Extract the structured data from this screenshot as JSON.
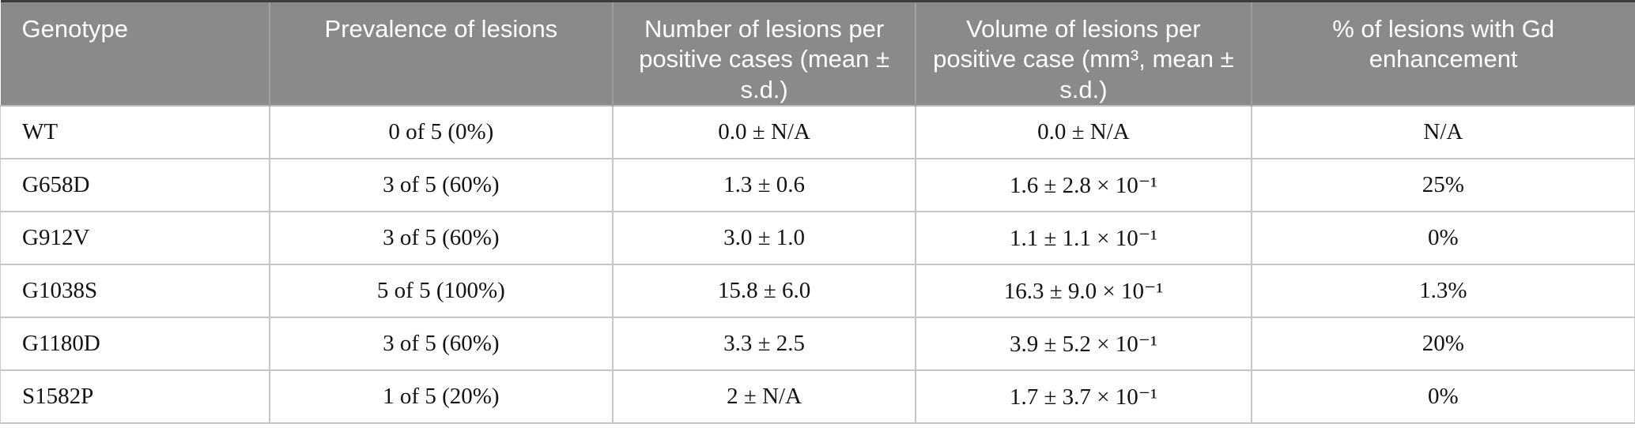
{
  "figure": {
    "kind": "journal-table",
    "colors": {
      "header_bg": "#8a8a8a",
      "header_text": "#ffffff",
      "top_rule": "#3c3c3c",
      "grid_line": "#c6c6c6",
      "body_text": "#131313"
    }
  },
  "table": {
    "columns": [
      {
        "label": "Genotype"
      },
      {
        "label": "Prevalence of lesions"
      },
      {
        "label": "Number of lesions per positive cases (mean ± s.d.)"
      },
      {
        "label": "Volume of lesions per positive case (mm³, mean ± s.d.)"
      },
      {
        "label": "% of lesions with Gd enhancement"
      }
    ],
    "rows": [
      [
        "WT",
        "0 of 5 (0%)",
        "0.0 ± N/A",
        "0.0 ± N/A",
        "N/A"
      ],
      [
        "G658D",
        "3 of 5 (60%)",
        "1.3 ± 0.6",
        "1.6 ± 2.8 × 10⁻¹",
        "25%"
      ],
      [
        "G912V",
        "3 of 5 (60%)",
        "3.0 ± 1.0",
        "1.1 ± 1.1 × 10⁻¹",
        "0%"
      ],
      [
        "G1038S",
        "5 of 5 (100%)",
        "15.8 ± 6.0",
        "16.3 ± 9.0 × 10⁻¹",
        "1.3%"
      ],
      [
        "G1180D",
        "3 of 5 (60%)",
        "3.3 ± 2.5",
        "3.9 ± 5.2 × 10⁻¹",
        "20%"
      ],
      [
        "S1582P",
        "1 of 5 (20%)",
        "2 ± N/A",
        "1.7 ± 3.7 × 10⁻¹",
        "0%"
      ]
    ]
  },
  "chart_data": {
    "type": "table",
    "title": "",
    "columns": [
      "Genotype",
      "Prevalence of lesions",
      "Number of lesions per positive cases (mean ± s.d.)",
      "Volume of lesions per positive case (mm³, mean ± s.d.)",
      "% of lesions with Gd enhancement"
    ],
    "rows": [
      [
        "WT",
        "0 of 5 (0%)",
        "0.0 ± N/A",
        "0.0 ± N/A",
        "N/A"
      ],
      [
        "G658D",
        "3 of 5 (60%)",
        "1.3 ± 0.6",
        "1.6 ± 2.8 × 10⁻¹",
        "25%"
      ],
      [
        "G912V",
        "3 of 5 (60%)",
        "3.0 ± 1.0",
        "1.1 ± 1.1 × 10⁻¹",
        "0%"
      ],
      [
        "G1038S",
        "5 of 5 (100%)",
        "15.8 ± 6.0",
        "16.3 ± 9.0 × 10⁻¹",
        "1.3%"
      ],
      [
        "G1180D",
        "3 of 5 (60%)",
        "3.3 ± 2.5",
        "3.9 ± 5.2 × 10⁻¹",
        "20%"
      ],
      [
        "S1582P",
        "1 of 5 (20%)",
        "2 ± N/A",
        "1.7 ± 3.7 × 10⁻¹",
        "0%"
      ]
    ]
  }
}
